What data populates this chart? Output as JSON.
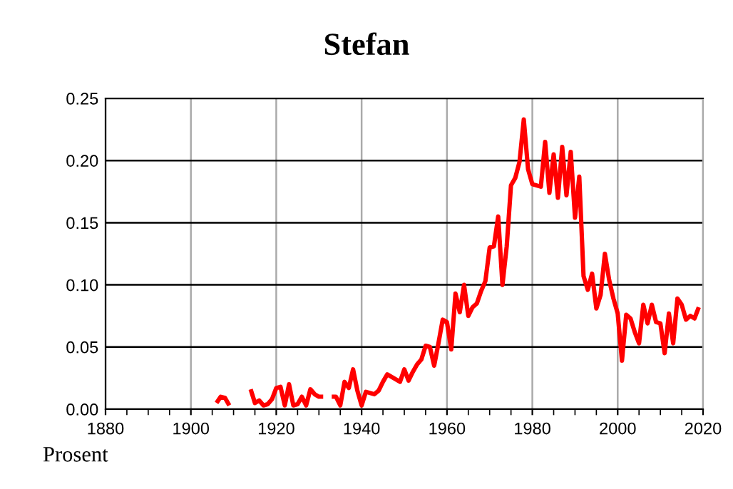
{
  "chart_data": {
    "type": "line",
    "title": "Stefan",
    "x": [
      1906,
      1907,
      1908,
      1909,
      1910,
      1911,
      1912,
      1913,
      1914,
      1915,
      1916,
      1917,
      1918,
      1919,
      1920,
      1921,
      1922,
      1923,
      1924,
      1925,
      1926,
      1927,
      1928,
      1929,
      1930,
      1931,
      1932,
      1933,
      1934,
      1935,
      1936,
      1937,
      1938,
      1939,
      1940,
      1941,
      1942,
      1943,
      1944,
      1945,
      1946,
      1947,
      1948,
      1949,
      1950,
      1951,
      1952,
      1953,
      1954,
      1955,
      1956,
      1957,
      1958,
      1959,
      1960,
      1961,
      1962,
      1963,
      1964,
      1965,
      1966,
      1967,
      1968,
      1969,
      1970,
      1971,
      1972,
      1973,
      1974,
      1975,
      1976,
      1977,
      1978,
      1979,
      1980,
      1981,
      1982,
      1983,
      1984,
      1985,
      1986,
      1987,
      1988,
      1989,
      1990,
      1991,
      1992,
      1993,
      1994,
      1995,
      1996,
      1997,
      1998,
      1999,
      2000,
      2001,
      2002,
      2003,
      2004,
      2005,
      2006,
      2007,
      2008,
      2009,
      2010,
      2011,
      2012,
      2013,
      2014,
      2015,
      2016,
      2017,
      2018,
      2019
    ],
    "series": [
      {
        "color": "#ff0000",
        "values": [
          0.005,
          0.01,
          0.009,
          0.003,
          null,
          null,
          null,
          null,
          0.016,
          0.005,
          0.007,
          0.003,
          0.004,
          0.008,
          0.017,
          0.018,
          0.003,
          0.02,
          0.003,
          0.004,
          0.01,
          0.003,
          0.016,
          0.012,
          0.01,
          0.01,
          null,
          0.01,
          0.01,
          0.003,
          0.022,
          0.017,
          0.032,
          0.015,
          0.003,
          0.014,
          0.013,
          0.012,
          0.015,
          0.022,
          0.028,
          0.026,
          0.024,
          0.022,
          0.032,
          0.023,
          0.03,
          0.036,
          0.04,
          0.051,
          0.05,
          0.035,
          0.053,
          0.072,
          0.07,
          0.048,
          0.093,
          0.078,
          0.1,
          0.075,
          0.082,
          0.085,
          0.095,
          0.103,
          0.13,
          0.131,
          0.155,
          0.1,
          0.131,
          0.18,
          0.186,
          0.199,
          0.233,
          0.193,
          0.181,
          0.18,
          0.179,
          0.215,
          0.174,
          0.205,
          0.17,
          0.211,
          0.172,
          0.207,
          0.154,
          0.187,
          0.107,
          0.096,
          0.109,
          0.081,
          0.092,
          0.125,
          0.104,
          0.089,
          0.077,
          0.039,
          0.076,
          0.073,
          0.062,
          0.053,
          0.084,
          0.069,
          0.084,
          0.07,
          0.069,
          0.045,
          0.077,
          0.053,
          0.089,
          0.084,
          0.072,
          0.075,
          0.073,
          0.082
        ]
      }
    ],
    "xlim": [
      1880,
      2020
    ],
    "xticks": [
      1880,
      1900,
      1920,
      1940,
      1960,
      1980,
      2000,
      2020
    ],
    "ylim": [
      0,
      0.25
    ],
    "yticks": [
      {
        "value": 0,
        "label": "0.00"
      },
      {
        "value": 0.05,
        "label": "0.05"
      },
      {
        "value": 0.1,
        "label": "0.10"
      },
      {
        "value": 0.15,
        "label": "0.15"
      },
      {
        "value": 0.2,
        "label": "0.20"
      },
      {
        "value": 0.25,
        "label": "0.25"
      }
    ],
    "grid": true,
    "line_style": "solid",
    "marker": "none",
    "annotations": [
      "Prosent"
    ]
  }
}
